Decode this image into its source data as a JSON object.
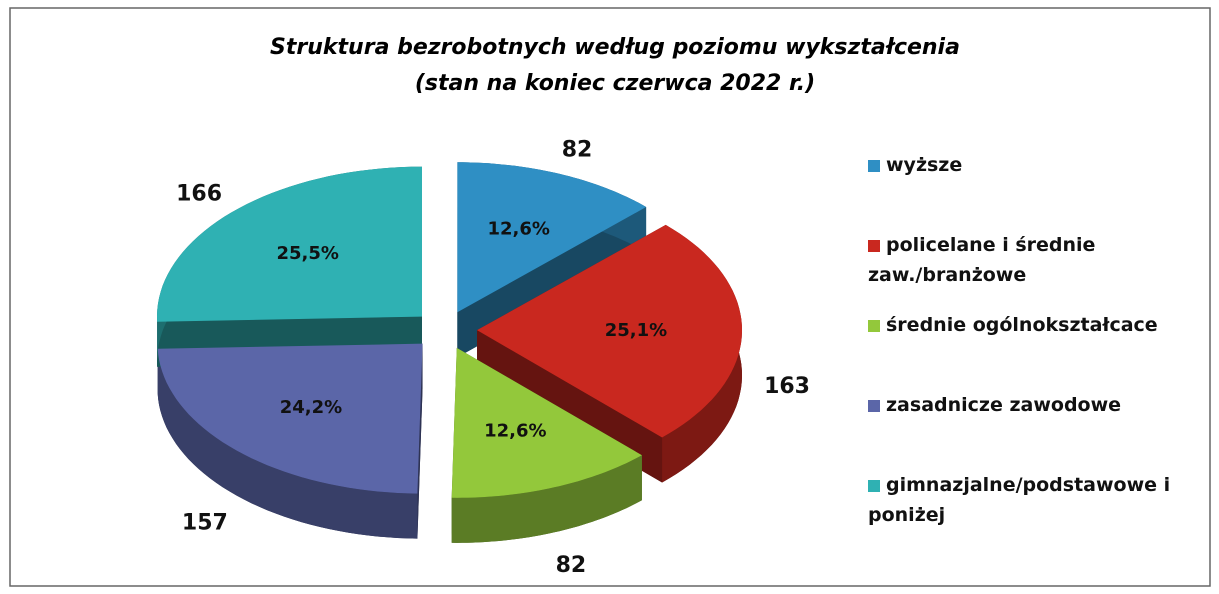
{
  "chart_data": {
    "type": "pie3d",
    "title": "Struktura bezrobotnych według poziomu wykształcenia",
    "subtitle": "(stan na koniec czerwca 2022 r.)",
    "categories": [
      "wyższe",
      "policelane i średnie zaw./branżowe",
      "średnie ogólnokształcace",
      "zasadnicze zawodowe",
      "gimnazjalne/podstawowe i poniżej"
    ],
    "values": [
      82,
      163,
      82,
      157,
      166
    ],
    "shares": [
      12.6,
      25.1,
      12.6,
      24.2,
      25.5
    ],
    "share_labels": [
      "12,6%",
      "25,1%",
      "12,6%",
      "24,2%",
      "25,5%"
    ],
    "colors": [
      "#2f8fc4",
      "#c9281f",
      "#93c83b",
      "#5b66a8",
      "#2fb1b3"
    ],
    "legend": "right"
  }
}
